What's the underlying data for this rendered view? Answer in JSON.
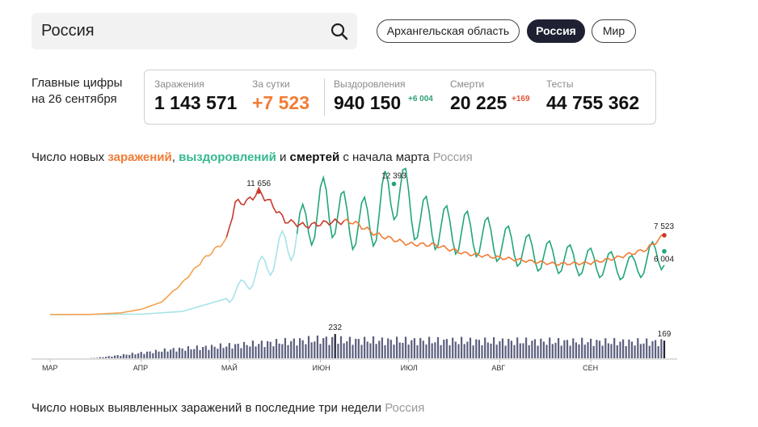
{
  "search": {
    "value": "Россия"
  },
  "region_tabs": [
    {
      "label": "Архангельская область",
      "active": false
    },
    {
      "label": "Россия",
      "active": true
    },
    {
      "label": "Мир",
      "active": false
    }
  ],
  "main_figures": {
    "caption_line1": "Главные цифры",
    "caption_line2": "на 26 сентября",
    "stats": {
      "infections": {
        "label": "Заражения",
        "value": "1 143 571"
      },
      "daily": {
        "label": "За сутки",
        "value": "+7 523"
      },
      "recovered": {
        "label": "Выздоровления",
        "value": "940 150",
        "delta": "+6 004"
      },
      "deaths": {
        "label": "Смерти",
        "value": "20 225",
        "delta": "+169"
      },
      "tests": {
        "label": "Тесты",
        "value": "44 755 362"
      }
    }
  },
  "chart_title": {
    "prefix": "Число новых ",
    "infections": "заражений",
    "comma": ", ",
    "recoveries": "выздоровлений",
    "and": " и ",
    "deaths": "смертей",
    "suffix": " с начала марта",
    "region": "Россия"
  },
  "bottom_title": {
    "text": "Число новых выявленных заражений в последние три недели",
    "region": "Россия"
  },
  "colors": {
    "infections_early": "#f3a24e",
    "infections_peak": "#c8392b",
    "infections_late": "#f07c35",
    "recoveries_early": "#a7e3e8",
    "recoveries_main": "#22a57a",
    "deaths_bar": "#5c5f7e",
    "deaths_bar_highlight": "#1f2133"
  },
  "chart_data": {
    "type": "line",
    "x_start": "2020-03-01",
    "x_end": "2020-09-26",
    "x_ticks": [
      "МАР",
      "АПР",
      "МАЙ",
      "ИЮН",
      "ИЮЛ",
      "АВГ",
      "СЕН"
    ],
    "series": [
      {
        "key": "infections",
        "name": "заражений",
        "points": [
          [
            "2020-03-01",
            0
          ],
          [
            "2020-03-15",
            20
          ],
          [
            "2020-03-25",
            160
          ],
          [
            "2020-04-01",
            500
          ],
          [
            "2020-04-08",
            1200
          ],
          [
            "2020-04-15",
            3000
          ],
          [
            "2020-04-22",
            5200
          ],
          [
            "2020-04-30",
            7100
          ],
          [
            "2020-05-03",
            10600
          ],
          [
            "2020-05-07",
            10700
          ],
          [
            "2020-05-11",
            11656
          ],
          [
            "2020-05-15",
            10600
          ],
          [
            "2020-05-20",
            8900
          ],
          [
            "2020-05-27",
            8400
          ],
          [
            "2020-06-05",
            8800
          ],
          [
            "2020-06-12",
            8800
          ],
          [
            "2020-06-20",
            7600
          ],
          [
            "2020-07-01",
            6700
          ],
          [
            "2020-07-10",
            6600
          ],
          [
            "2020-07-20",
            5800
          ],
          [
            "2020-08-01",
            5400
          ],
          [
            "2020-08-10",
            5100
          ],
          [
            "2020-08-20",
            4800
          ],
          [
            "2020-09-01",
            4900
          ],
          [
            "2020-09-10",
            5400
          ],
          [
            "2020-09-20",
            6200
          ],
          [
            "2020-09-26",
            7523
          ]
        ]
      },
      {
        "key": "recoveries",
        "name": "выздоровлений",
        "points": [
          [
            "2020-03-01",
            0
          ],
          [
            "2020-04-01",
            40
          ],
          [
            "2020-04-15",
            300
          ],
          [
            "2020-05-01",
            1600
          ],
          [
            "2020-05-10",
            3800
          ],
          [
            "2020-05-20",
            6500
          ],
          [
            "2020-05-27",
            8500
          ],
          [
            "2020-06-03",
            10500
          ],
          [
            "2020-06-12",
            8500
          ],
          [
            "2020-06-20",
            9000
          ],
          [
            "2020-06-26",
            12393
          ],
          [
            "2020-07-05",
            9000
          ],
          [
            "2020-07-15",
            8000
          ],
          [
            "2020-07-25",
            7500
          ],
          [
            "2020-08-05",
            6500
          ],
          [
            "2020-08-15",
            5600
          ],
          [
            "2020-08-25",
            5200
          ],
          [
            "2020-09-05",
            4800
          ],
          [
            "2020-09-15",
            4400
          ],
          [
            "2020-09-26",
            6004
          ]
        ]
      },
      {
        "key": "deaths",
        "name": "смертей",
        "type": "bar",
        "peak": 232,
        "last": 169
      }
    ],
    "annotations": [
      {
        "series": "infections",
        "x": "2020-05-11",
        "y": 11656,
        "label": "11 656"
      },
      {
        "series": "recoveries",
        "x": "2020-06-26",
        "y": 12393,
        "label": "12 393"
      },
      {
        "series": "infections",
        "x": "2020-09-26",
        "y": 7523,
        "label": "7 523"
      },
      {
        "series": "recoveries",
        "x": "2020-09-26",
        "y": 6004,
        "label": "6 004"
      },
      {
        "series": "deaths",
        "x": "2020-06-06",
        "y": 232,
        "label": "232"
      },
      {
        "series": "deaths",
        "x": "2020-09-26",
        "y": 169,
        "label": "169"
      }
    ],
    "ylim": [
      0,
      12500
    ],
    "deaths_ylim": [
      0,
      240
    ]
  }
}
